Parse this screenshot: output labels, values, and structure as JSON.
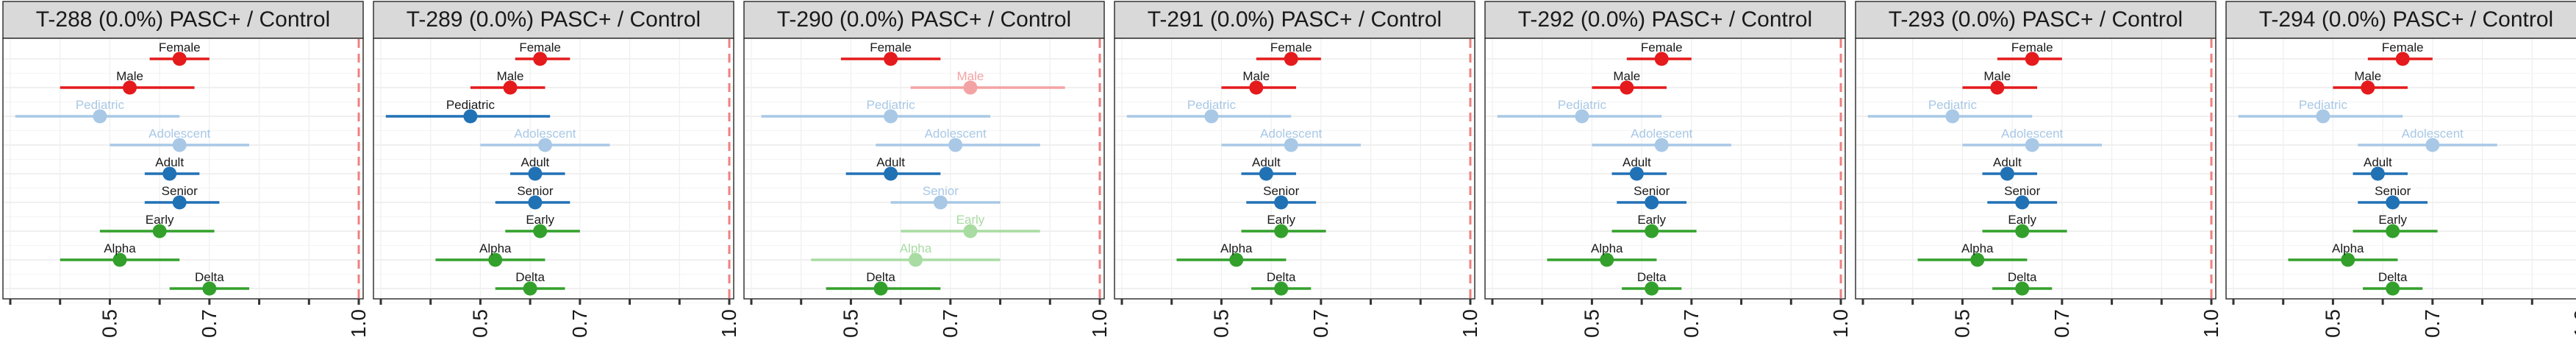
{
  "legend_colors": {
    "red": "#E41A1C",
    "light_red": "#F4A3A4",
    "blue": "#2171B5",
    "light_blue": "#A8C8E6",
    "green": "#33A02C",
    "light_green": "#A9DCA3",
    "reference_line": "#F08080"
  },
  "chart_data": [
    {
      "type": "forest",
      "title": "T-288 (0.0%) PASC+ / Control",
      "xlabel": "",
      "ylabel": "",
      "xlim": [
        0.3,
        1.0
      ],
      "xticks": [
        "0.5",
        "0.7",
        "1.0"
      ],
      "reference_x": 1.0,
      "grid": true,
      "rows": [
        {
          "label": "Female",
          "estimate": 0.64,
          "low": 0.58,
          "high": 0.7,
          "group": "sex",
          "faded": false
        },
        {
          "label": "Male",
          "estimate": 0.54,
          "low": 0.4,
          "high": 0.67,
          "group": "sex",
          "faded": false
        },
        {
          "label": "Pediatric",
          "estimate": 0.48,
          "low": 0.31,
          "high": 0.64,
          "group": "age",
          "faded": true
        },
        {
          "label": "Adolescent",
          "estimate": 0.64,
          "low": 0.5,
          "high": 0.78,
          "group": "age",
          "faded": true
        },
        {
          "label": "Adult",
          "estimate": 0.62,
          "low": 0.57,
          "high": 0.68,
          "group": "age",
          "faded": false
        },
        {
          "label": "Senior",
          "estimate": 0.64,
          "low": 0.57,
          "high": 0.72,
          "group": "age",
          "faded": false
        },
        {
          "label": "Early",
          "estimate": 0.6,
          "low": 0.48,
          "high": 0.71,
          "group": "variant",
          "faded": false
        },
        {
          "label": "Alpha",
          "estimate": 0.52,
          "low": 0.4,
          "high": 0.64,
          "group": "variant",
          "faded": false
        },
        {
          "label": "Delta",
          "estimate": 0.7,
          "low": 0.62,
          "high": 0.78,
          "group": "variant",
          "faded": false
        }
      ]
    },
    {
      "type": "forest",
      "title": "T-289 (0.0%) PASC+ / Control",
      "xlabel": "",
      "ylabel": "",
      "xlim": [
        0.3,
        1.0
      ],
      "xticks": [
        "0.5",
        "0.7",
        "1.0"
      ],
      "reference_x": 1.0,
      "grid": true,
      "rows": [
        {
          "label": "Female",
          "estimate": 0.62,
          "low": 0.57,
          "high": 0.68,
          "group": "sex",
          "faded": false
        },
        {
          "label": "Male",
          "estimate": 0.56,
          "low": 0.48,
          "high": 0.63,
          "group": "sex",
          "faded": false
        },
        {
          "label": "Pediatric",
          "estimate": 0.48,
          "low": 0.31,
          "high": 0.64,
          "group": "age",
          "faded": false
        },
        {
          "label": "Adolescent",
          "estimate": 0.63,
          "low": 0.5,
          "high": 0.76,
          "group": "age",
          "faded": true
        },
        {
          "label": "Adult",
          "estimate": 0.61,
          "low": 0.56,
          "high": 0.67,
          "group": "age",
          "faded": false
        },
        {
          "label": "Senior",
          "estimate": 0.61,
          "low": 0.53,
          "high": 0.68,
          "group": "age",
          "faded": false
        },
        {
          "label": "Early",
          "estimate": 0.62,
          "low": 0.55,
          "high": 0.7,
          "group": "variant",
          "faded": false
        },
        {
          "label": "Alpha",
          "estimate": 0.53,
          "low": 0.41,
          "high": 0.63,
          "group": "variant",
          "faded": false
        },
        {
          "label": "Delta",
          "estimate": 0.6,
          "low": 0.53,
          "high": 0.67,
          "group": "variant",
          "faded": false
        }
      ]
    },
    {
      "type": "forest",
      "title": "T-290 (0.0%) PASC+ / Control",
      "xlabel": "",
      "ylabel": "",
      "xlim": [
        0.3,
        1.0
      ],
      "xticks": [
        "0.5",
        "0.7",
        "1.0"
      ],
      "reference_x": 1.0,
      "grid": true,
      "rows": [
        {
          "label": "Female",
          "estimate": 0.58,
          "low": 0.48,
          "high": 0.68,
          "group": "sex",
          "faded": false
        },
        {
          "label": "Male",
          "estimate": 0.74,
          "low": 0.62,
          "high": 0.93,
          "group": "sex",
          "faded": true
        },
        {
          "label": "Pediatric",
          "estimate": 0.58,
          "low": 0.32,
          "high": 0.78,
          "group": "age",
          "faded": true
        },
        {
          "label": "Adolescent",
          "estimate": 0.71,
          "low": 0.55,
          "high": 0.88,
          "group": "age",
          "faded": true
        },
        {
          "label": "Adult",
          "estimate": 0.58,
          "low": 0.49,
          "high": 0.68,
          "group": "age",
          "faded": false
        },
        {
          "label": "Senior",
          "estimate": 0.68,
          "low": 0.58,
          "high": 0.8,
          "group": "age",
          "faded": true
        },
        {
          "label": "Early",
          "estimate": 0.74,
          "low": 0.6,
          "high": 0.88,
          "group": "variant",
          "faded": true
        },
        {
          "label": "Alpha",
          "estimate": 0.63,
          "low": 0.42,
          "high": 0.8,
          "group": "variant",
          "faded": true
        },
        {
          "label": "Delta",
          "estimate": 0.56,
          "low": 0.45,
          "high": 0.68,
          "group": "variant",
          "faded": false
        }
      ]
    },
    {
      "type": "forest",
      "title": "T-291 (0.0%) PASC+ / Control",
      "xlabel": "",
      "ylabel": "",
      "xlim": [
        0.3,
        1.0
      ],
      "xticks": [
        "0.5",
        "0.7",
        "1.0"
      ],
      "reference_x": 1.0,
      "grid": true,
      "rows": [
        {
          "label": "Female",
          "estimate": 0.64,
          "low": 0.57,
          "high": 0.7,
          "group": "sex",
          "faded": false
        },
        {
          "label": "Male",
          "estimate": 0.57,
          "low": 0.5,
          "high": 0.65,
          "group": "sex",
          "faded": false
        },
        {
          "label": "Pediatric",
          "estimate": 0.48,
          "low": 0.31,
          "high": 0.64,
          "group": "age",
          "faded": true
        },
        {
          "label": "Adolescent",
          "estimate": 0.64,
          "low": 0.5,
          "high": 0.78,
          "group": "age",
          "faded": true
        },
        {
          "label": "Adult",
          "estimate": 0.59,
          "low": 0.54,
          "high": 0.65,
          "group": "age",
          "faded": false
        },
        {
          "label": "Senior",
          "estimate": 0.62,
          "low": 0.55,
          "high": 0.69,
          "group": "age",
          "faded": false
        },
        {
          "label": "Early",
          "estimate": 0.62,
          "low": 0.54,
          "high": 0.71,
          "group": "variant",
          "faded": false
        },
        {
          "label": "Alpha",
          "estimate": 0.53,
          "low": 0.41,
          "high": 0.63,
          "group": "variant",
          "faded": false
        },
        {
          "label": "Delta",
          "estimate": 0.62,
          "low": 0.56,
          "high": 0.68,
          "group": "variant",
          "faded": false
        }
      ]
    },
    {
      "type": "forest",
      "title": "T-292 (0.0%) PASC+ / Control",
      "xlabel": "",
      "ylabel": "",
      "xlim": [
        0.3,
        1.0
      ],
      "xticks": [
        "0.5",
        "0.7",
        "1.0"
      ],
      "reference_x": 1.0,
      "grid": true,
      "rows": [
        {
          "label": "Female",
          "estimate": 0.64,
          "low": 0.57,
          "high": 0.7,
          "group": "sex",
          "faded": false
        },
        {
          "label": "Male",
          "estimate": 0.57,
          "low": 0.5,
          "high": 0.65,
          "group": "sex",
          "faded": false
        },
        {
          "label": "Pediatric",
          "estimate": 0.48,
          "low": 0.31,
          "high": 0.64,
          "group": "age",
          "faded": true
        },
        {
          "label": "Adolescent",
          "estimate": 0.64,
          "low": 0.5,
          "high": 0.78,
          "group": "age",
          "faded": true
        },
        {
          "label": "Adult",
          "estimate": 0.59,
          "low": 0.54,
          "high": 0.65,
          "group": "age",
          "faded": false
        },
        {
          "label": "Senior",
          "estimate": 0.62,
          "low": 0.55,
          "high": 0.69,
          "group": "age",
          "faded": false
        },
        {
          "label": "Early",
          "estimate": 0.62,
          "low": 0.54,
          "high": 0.71,
          "group": "variant",
          "faded": false
        },
        {
          "label": "Alpha",
          "estimate": 0.53,
          "low": 0.41,
          "high": 0.63,
          "group": "variant",
          "faded": false
        },
        {
          "label": "Delta",
          "estimate": 0.62,
          "low": 0.56,
          "high": 0.68,
          "group": "variant",
          "faded": false
        }
      ]
    },
    {
      "type": "forest",
      "title": "T-293 (0.0%) PASC+ / Control",
      "xlabel": "",
      "ylabel": "",
      "xlim": [
        0.3,
        1.0
      ],
      "xticks": [
        "0.5",
        "0.7",
        "1.0"
      ],
      "reference_x": 1.0,
      "grid": true,
      "rows": [
        {
          "label": "Female",
          "estimate": 0.64,
          "low": 0.57,
          "high": 0.7,
          "group": "sex",
          "faded": false
        },
        {
          "label": "Male",
          "estimate": 0.57,
          "low": 0.5,
          "high": 0.65,
          "group": "sex",
          "faded": false
        },
        {
          "label": "Pediatric",
          "estimate": 0.48,
          "low": 0.31,
          "high": 0.64,
          "group": "age",
          "faded": true
        },
        {
          "label": "Adolescent",
          "estimate": 0.64,
          "low": 0.5,
          "high": 0.78,
          "group": "age",
          "faded": true
        },
        {
          "label": "Adult",
          "estimate": 0.59,
          "low": 0.54,
          "high": 0.65,
          "group": "age",
          "faded": false
        },
        {
          "label": "Senior",
          "estimate": 0.62,
          "low": 0.55,
          "high": 0.69,
          "group": "age",
          "faded": false
        },
        {
          "label": "Early",
          "estimate": 0.62,
          "low": 0.54,
          "high": 0.71,
          "group": "variant",
          "faded": false
        },
        {
          "label": "Alpha",
          "estimate": 0.53,
          "low": 0.41,
          "high": 0.63,
          "group": "variant",
          "faded": false
        },
        {
          "label": "Delta",
          "estimate": 0.62,
          "low": 0.56,
          "high": 0.68,
          "group": "variant",
          "faded": false
        }
      ]
    },
    {
      "type": "forest",
      "title": "T-294 (0.0%) PASC+ / Control",
      "xlabel": "",
      "ylabel": "",
      "xlim": [
        0.3,
        1.0
      ],
      "xticks": [
        "0.5",
        "0.7",
        "1.0"
      ],
      "reference_x": 1.0,
      "grid": true,
      "rows": [
        {
          "label": "Female",
          "estimate": 0.64,
          "low": 0.57,
          "high": 0.7,
          "group": "sex",
          "faded": false
        },
        {
          "label": "Male",
          "estimate": 0.57,
          "low": 0.5,
          "high": 0.65,
          "group": "sex",
          "faded": false
        },
        {
          "label": "Pediatric",
          "estimate": 0.48,
          "low": 0.31,
          "high": 0.64,
          "group": "age",
          "faded": true
        },
        {
          "label": "Adolescent",
          "estimate": 0.7,
          "low": 0.55,
          "high": 0.83,
          "group": "age",
          "faded": true
        },
        {
          "label": "Adult",
          "estimate": 0.59,
          "low": 0.54,
          "high": 0.65,
          "group": "age",
          "faded": false
        },
        {
          "label": "Senior",
          "estimate": 0.62,
          "low": 0.55,
          "high": 0.69,
          "group": "age",
          "faded": false
        },
        {
          "label": "Early",
          "estimate": 0.62,
          "low": 0.54,
          "high": 0.71,
          "group": "variant",
          "faded": false
        },
        {
          "label": "Alpha",
          "estimate": 0.53,
          "low": 0.41,
          "high": 0.63,
          "group": "variant",
          "faded": false
        },
        {
          "label": "Delta",
          "estimate": 0.62,
          "low": 0.56,
          "high": 0.68,
          "group": "variant",
          "faded": false
        }
      ]
    }
  ]
}
